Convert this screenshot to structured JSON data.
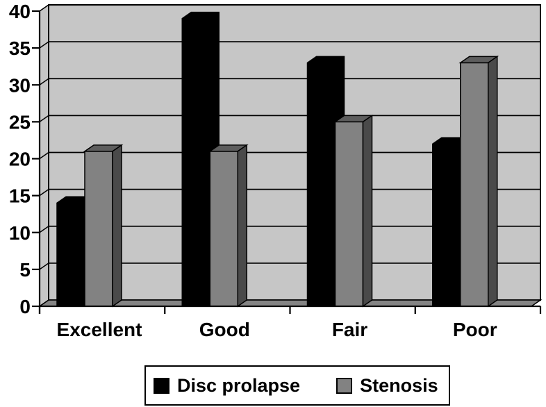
{
  "chart_data": {
    "type": "bar",
    "style": "3d-clustered-column",
    "title": "",
    "categories": [
      "Excellent",
      "Good",
      "Fair",
      "Poor"
    ],
    "series": [
      {
        "name": "Disc prolapse",
        "color": "#000000",
        "values": [
          14,
          39,
          33,
          22
        ]
      },
      {
        "name": "Stenosis",
        "color": "#828282",
        "values": [
          21,
          21,
          25,
          33
        ]
      }
    ],
    "ylim": [
      0,
      40
    ],
    "yticks": [
      0,
      5,
      10,
      15,
      20,
      25,
      30,
      35,
      40
    ],
    "grid": true,
    "legend_position": "bottom",
    "colors": {
      "plot_bg": "#c6c6c6",
      "floor": "#848484",
      "gray_bar_top": "#5d5d5d",
      "gray_bar_side": "#4a4a4a",
      "grid_line": "#000000",
      "axis_line": "#000000"
    }
  }
}
